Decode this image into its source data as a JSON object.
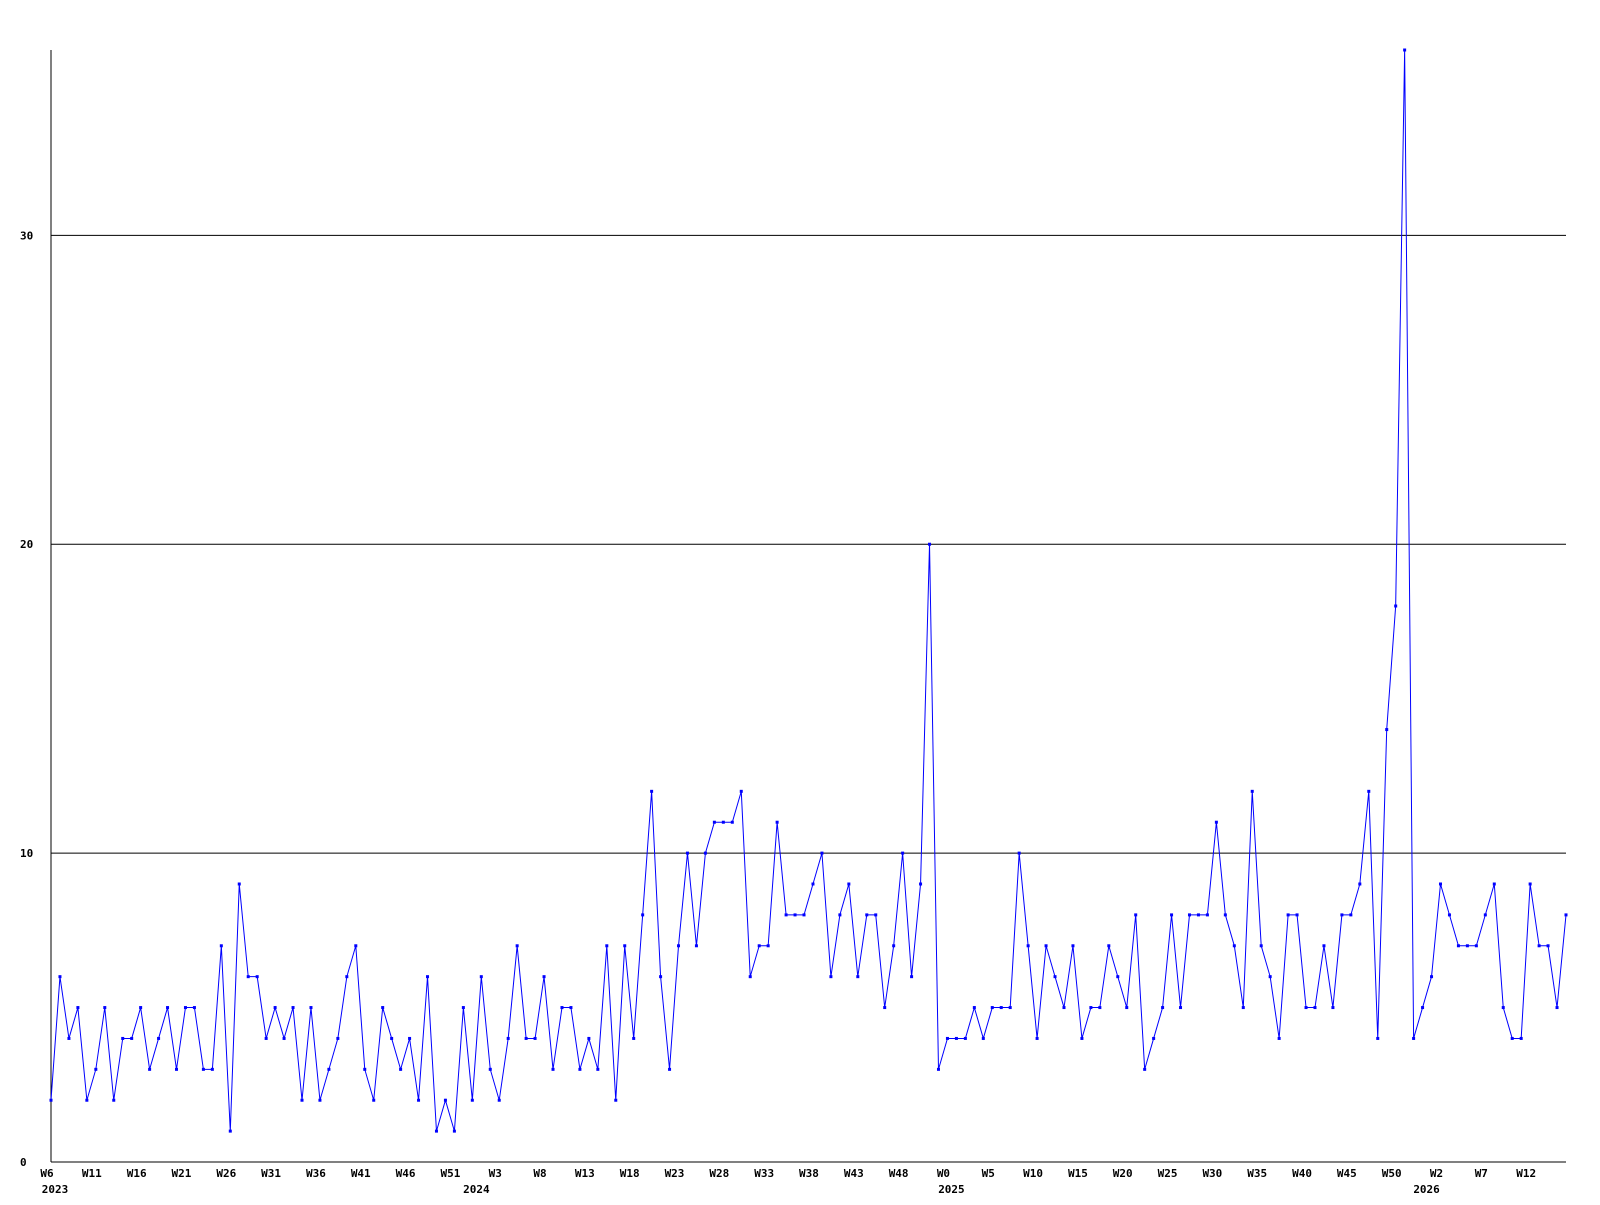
{
  "chart_data": {
    "type": "line",
    "color": "#0000ff",
    "grid": true,
    "ylim": [
      0,
      36
    ],
    "yticks": [
      0,
      10,
      20,
      30
    ],
    "categories": [
      "W6",
      null,
      null,
      null,
      null,
      "W11",
      null,
      null,
      null,
      null,
      "W16",
      null,
      null,
      null,
      null,
      "W21",
      null,
      null,
      null,
      null,
      "W26",
      null,
      null,
      null,
      null,
      "W31",
      null,
      null,
      null,
      null,
      "W36",
      null,
      null,
      null,
      null,
      "W41",
      null,
      null,
      null,
      null,
      "W46",
      null,
      null,
      null,
      null,
      "W51",
      null,
      null,
      null,
      null,
      "W3",
      null,
      null,
      null,
      null,
      "W8",
      null,
      null,
      null,
      null,
      "W13",
      null,
      null,
      null,
      null,
      "W18",
      null,
      null,
      null,
      null,
      "W23",
      null,
      null,
      null,
      null,
      "W28",
      null,
      null,
      null,
      null,
      "W33",
      null,
      null,
      null,
      null,
      "W38",
      null,
      null,
      null,
      null,
      "W43",
      null,
      null,
      null,
      null,
      "W48",
      null,
      null,
      null,
      null,
      "W0",
      null,
      null,
      null,
      null,
      "W5",
      null,
      null,
      null,
      null,
      "W10",
      null,
      null,
      null,
      null,
      "W15",
      null,
      null,
      null,
      null,
      "W20",
      null,
      null,
      null,
      null,
      "W25",
      null,
      null,
      null,
      null,
      "W30",
      null,
      null,
      null,
      null,
      "W35",
      null,
      null,
      null,
      null,
      "W40",
      null,
      null,
      null,
      null,
      "W45",
      null,
      null,
      null,
      null,
      "W50",
      null,
      null,
      null,
      null,
      "W2",
      null,
      null,
      null,
      null,
      "W7",
      null,
      null,
      null,
      null,
      "W12",
      null,
      null,
      null,
      null
    ],
    "years": [
      "2023",
      null,
      null,
      null,
      null,
      null,
      null,
      null,
      null,
      null,
      null,
      null,
      null,
      null,
      null,
      null,
      null,
      null,
      null,
      null,
      null,
      null,
      null,
      null,
      null,
      null,
      null,
      null,
      null,
      null,
      null,
      null,
      null,
      null,
      null,
      null,
      null,
      null,
      null,
      null,
      null,
      null,
      null,
      null,
      null,
      null,
      null,
      "2024",
      null,
      null,
      null,
      null,
      null,
      null,
      null,
      null,
      null,
      null,
      null,
      null,
      null,
      null,
      null,
      null,
      null,
      null,
      null,
      null,
      null,
      null,
      null,
      null,
      null,
      null,
      null,
      null,
      null,
      null,
      null,
      null,
      null,
      null,
      null,
      null,
      null,
      null,
      null,
      null,
      null,
      null,
      null,
      null,
      null,
      null,
      null,
      null,
      null,
      null,
      null,
      null,
      "2025",
      null,
      null,
      null,
      null,
      null,
      null,
      null,
      null,
      null,
      null,
      null,
      null,
      null,
      null,
      null,
      null,
      null,
      null,
      null,
      null,
      null,
      null,
      null,
      null,
      null,
      null,
      null,
      null,
      null,
      null,
      null,
      null,
      null,
      null,
      null,
      null,
      null,
      null,
      null,
      null,
      null,
      null,
      null,
      null,
      null,
      null,
      null,
      null,
      null,
      null,
      null,
      null,
      "2026",
      null,
      null,
      null,
      null,
      null,
      null,
      null,
      null,
      null,
      null,
      null,
      null,
      null,
      null,
      null,
      null
    ],
    "values": [
      2,
      6,
      4,
      5,
      2,
      3,
      5,
      2,
      4,
      4,
      5,
      3,
      4,
      5,
      3,
      5,
      5,
      3,
      3,
      7,
      1,
      9,
      6,
      6,
      4,
      5,
      4,
      5,
      2,
      5,
      2,
      3,
      4,
      6,
      7,
      3,
      2,
      5,
      4,
      3,
      4,
      2,
      6,
      1,
      2,
      1,
      5,
      2,
      6,
      3,
      2,
      4,
      7,
      4,
      4,
      6,
      3,
      5,
      5,
      3,
      4,
      3,
      7,
      2,
      7,
      4,
      8,
      12,
      6,
      3,
      7,
      10,
      7,
      10,
      11,
      11,
      11,
      12,
      6,
      7,
      7,
      11,
      8,
      8,
      8,
      9,
      10,
      6,
      8,
      9,
      6,
      8,
      8,
      5,
      7,
      10,
      6,
      9,
      20,
      3,
      4,
      4,
      4,
      5,
      4,
      5,
      5,
      5,
      10,
      7,
      4,
      7,
      6,
      5,
      7,
      4,
      5,
      5,
      7,
      6,
      5,
      8,
      3,
      4,
      5,
      8,
      5,
      8,
      8,
      8,
      11,
      8,
      7,
      5,
      12,
      7,
      6,
      4,
      8,
      8,
      5,
      5,
      7,
      5,
      8,
      8,
      9,
      12,
      4,
      14,
      18,
      36,
      4,
      5,
      6,
      9,
      8,
      7,
      7,
      7,
      8,
      9,
      5,
      4,
      4,
      9,
      7,
      7,
      5,
      8
    ]
  }
}
